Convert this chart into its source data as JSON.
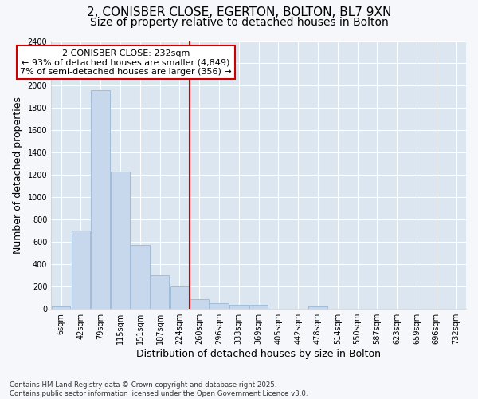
{
  "title_line1": "2, CONISBER CLOSE, EGERTON, BOLTON, BL7 9XN",
  "title_line2": "Size of property relative to detached houses in Bolton",
  "xlabel": "Distribution of detached houses by size in Bolton",
  "ylabel": "Number of detached properties",
  "bar_color": "#c8d8ec",
  "bar_edgecolor": "#a0bcd8",
  "plot_bg_color": "#dce6f0",
  "fig_bg_color": "#f5f7fa",
  "grid_color": "#ffffff",
  "categories": [
    "6sqm",
    "42sqm",
    "79sqm",
    "115sqm",
    "151sqm",
    "187sqm",
    "224sqm",
    "260sqm",
    "296sqm",
    "333sqm",
    "369sqm",
    "405sqm",
    "442sqm",
    "478sqm",
    "514sqm",
    "550sqm",
    "587sqm",
    "623sqm",
    "659sqm",
    "696sqm",
    "732sqm"
  ],
  "values": [
    20,
    700,
    1960,
    1230,
    570,
    305,
    200,
    85,
    50,
    40,
    35,
    0,
    0,
    25,
    0,
    0,
    0,
    0,
    0,
    0,
    0
  ],
  "vline_index": 6.5,
  "vline_color": "#cc0000",
  "annotation_text": "2 CONISBER CLOSE: 232sqm\n← 93% of detached houses are smaller (4,849)\n7% of semi-detached houses are larger (356) →",
  "annotation_box_color": "#cc0000",
  "ylim": [
    0,
    2400
  ],
  "yticks": [
    0,
    200,
    400,
    600,
    800,
    1000,
    1200,
    1400,
    1600,
    1800,
    2000,
    2200,
    2400
  ],
  "footnote": "Contains HM Land Registry data © Crown copyright and database right 2025.\nContains public sector information licensed under the Open Government Licence v3.0.",
  "title_fontsize": 11,
  "subtitle_fontsize": 10,
  "tick_fontsize": 7,
  "axis_label_fontsize": 9,
  "annotation_fontsize": 8
}
